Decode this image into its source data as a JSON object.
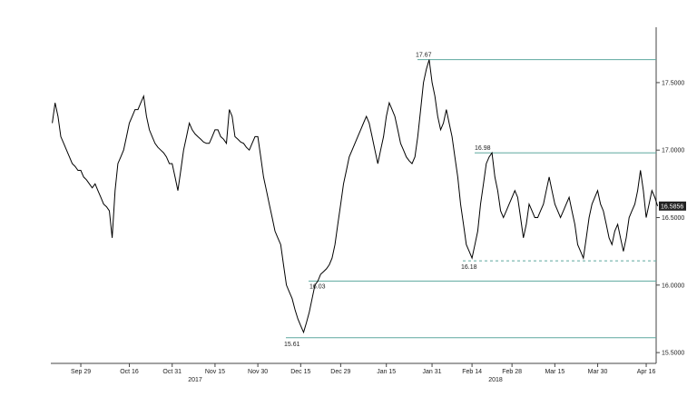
{
  "chart_data": {
    "type": "line",
    "categories": [
      null,
      null,
      null,
      null,
      null,
      null,
      null,
      null,
      null,
      null,
      "Sep 29",
      null,
      null,
      null,
      null,
      null,
      null,
      null,
      null,
      null,
      null,
      null,
      null,
      null,
      null,
      null,
      null,
      "Oct 16",
      null,
      null,
      null,
      null,
      null,
      null,
      null,
      null,
      null,
      null,
      null,
      null,
      null,
      null,
      "Oct 31",
      null,
      null,
      null,
      null,
      null,
      null,
      null,
      null,
      null,
      null,
      null,
      null,
      null,
      null,
      "Nov 15",
      null,
      null,
      null,
      null,
      null,
      null,
      null,
      null,
      null,
      null,
      null,
      null,
      null,
      null,
      "Nov 30",
      null,
      null,
      null,
      null,
      null,
      null,
      null,
      null,
      null,
      null,
      null,
      null,
      null,
      null,
      "Dec 15",
      null,
      null,
      null,
      null,
      null,
      null,
      null,
      null,
      null,
      null,
      null,
      null,
      null,
      "Dec 29",
      null,
      null,
      null,
      null,
      null,
      null,
      null,
      null,
      null,
      null,
      null,
      null,
      null,
      null,
      null,
      "Jan 15",
      null,
      null,
      null,
      null,
      null,
      null,
      null,
      null,
      null,
      null,
      null,
      null,
      null,
      null,
      null,
      "Jan 31",
      null,
      null,
      null,
      null,
      null,
      null,
      null,
      null,
      null,
      null,
      null,
      null,
      null,
      "Feb 14",
      null,
      null,
      null,
      null,
      null,
      null,
      null,
      null,
      null,
      null,
      null,
      null,
      null,
      "Feb 28",
      null,
      null,
      null,
      null,
      null,
      null,
      null,
      null,
      null,
      null,
      null,
      null,
      null,
      null,
      "Mar 15",
      null,
      null,
      null,
      null,
      null,
      null,
      null,
      null,
      null,
      null,
      null,
      null,
      null,
      null,
      "Mar 30",
      null,
      null,
      null,
      null,
      null,
      null,
      null,
      null,
      null,
      null,
      null,
      null,
      null,
      null,
      null,
      null,
      "Apr 16",
      null,
      null,
      null,
      null
    ],
    "values": [
      17.2,
      17.35,
      17.25,
      17.1,
      17.05,
      17.0,
      16.95,
      16.9,
      16.88,
      16.85,
      16.85,
      16.8,
      16.78,
      16.75,
      16.72,
      16.75,
      16.7,
      16.65,
      16.6,
      16.58,
      16.55,
      16.35,
      16.7,
      16.9,
      16.95,
      17.0,
      17.1,
      17.2,
      17.25,
      17.3,
      17.3,
      17.35,
      17.4,
      17.25,
      17.15,
      17.1,
      17.05,
      17.02,
      17.0,
      16.98,
      16.95,
      16.9,
      16.9,
      16.8,
      16.7,
      16.85,
      17.0,
      17.1,
      17.2,
      17.15,
      17.12,
      17.1,
      17.08,
      17.06,
      17.05,
      17.05,
      17.1,
      17.15,
      17.15,
      17.1,
      17.08,
      17.05,
      17.3,
      17.25,
      17.1,
      17.08,
      17.06,
      17.05,
      17.02,
      17.0,
      17.05,
      17.1,
      17.1,
      16.95,
      16.8,
      16.7,
      16.6,
      16.5,
      16.4,
      16.35,
      16.3,
      16.15,
      16.0,
      15.95,
      15.9,
      15.82,
      15.75,
      15.7,
      15.65,
      15.72,
      15.8,
      15.9,
      16.0,
      16.03,
      16.08,
      16.1,
      16.12,
      16.15,
      16.2,
      16.3,
      16.45,
      16.6,
      16.75,
      16.85,
      16.95,
      17.0,
      17.05,
      17.1,
      17.15,
      17.2,
      17.25,
      17.2,
      17.1,
      17.0,
      16.9,
      17.0,
      17.1,
      17.25,
      17.35,
      17.3,
      17.25,
      17.15,
      17.05,
      17.0,
      16.95,
      16.92,
      16.9,
      16.95,
      17.1,
      17.3,
      17.5,
      17.6,
      17.67,
      17.5,
      17.4,
      17.25,
      17.15,
      17.2,
      17.3,
      17.2,
      17.1,
      16.95,
      16.8,
      16.6,
      16.45,
      16.3,
      16.25,
      16.2,
      16.3,
      16.4,
      16.6,
      16.75,
      16.9,
      16.95,
      16.98,
      16.8,
      16.7,
      16.55,
      16.5,
      16.55,
      16.6,
      16.65,
      16.7,
      16.65,
      16.5,
      16.35,
      16.45,
      16.6,
      16.55,
      16.5,
      16.5,
      16.55,
      16.6,
      16.7,
      16.8,
      16.7,
      16.6,
      16.55,
      16.5,
      16.55,
      16.6,
      16.65,
      16.55,
      16.45,
      16.3,
      16.25,
      16.2,
      16.35,
      16.5,
      16.6,
      16.65,
      16.7,
      16.6,
      16.55,
      16.45,
      16.35,
      16.3,
      16.4,
      16.45,
      16.35,
      16.25,
      16.35,
      16.5,
      16.55,
      16.6,
      16.7,
      16.85,
      16.7,
      16.5,
      16.6,
      16.7,
      16.65,
      16.5856
    ],
    "color": "#000000",
    "ylim": [
      15.42,
      17.91
    ],
    "yticks": [
      {
        "value": 15.5,
        "label": "15.5000"
      },
      {
        "value": 16,
        "label": "16.0000"
      },
      {
        "value": 16.5,
        "label": "16.5000"
      },
      {
        "value": 17,
        "label": "17.0000"
      },
      {
        "value": 17.5,
        "label": "17.5000"
      }
    ],
    "x_year_labels": [
      "2017",
      "2018"
    ],
    "levels": [
      17.67,
      16.98,
      16.18,
      16.03,
      15.61
    ],
    "level_dashed": [
      false,
      false,
      true,
      false,
      false
    ],
    "level_color": "#5ea89f"
  }
}
